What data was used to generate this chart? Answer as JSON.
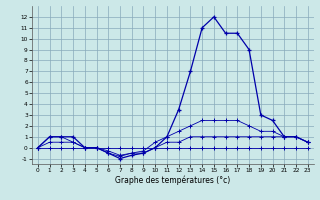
{
  "xlabel": "Graphe des températures (°c)",
  "hours": [
    0,
    1,
    2,
    3,
    4,
    5,
    6,
    7,
    8,
    9,
    10,
    11,
    12,
    13,
    14,
    15,
    16,
    17,
    18,
    19,
    20,
    21,
    22,
    23
  ],
  "temp_main": [
    0,
    1,
    1,
    1,
    0,
    0,
    -0.5,
    -1,
    -0.7,
    -0.5,
    0,
    1,
    3.5,
    7,
    11,
    12,
    10.5,
    10.5,
    9,
    3,
    2.5,
    1,
    1,
    0.5
  ],
  "temp_line2": [
    0,
    0,
    0,
    0,
    0,
    0,
    0,
    0,
    0,
    0,
    0,
    0,
    0,
    0,
    0,
    0,
    0,
    0,
    0,
    0,
    0,
    0,
    0,
    0
  ],
  "temp_line3": [
    0,
    0.5,
    0.5,
    0.5,
    0,
    0,
    -0.5,
    -0.8,
    -0.5,
    -0.5,
    0,
    0.5,
    0.5,
    1,
    1,
    1,
    1,
    1,
    1,
    1,
    1,
    1,
    1,
    0.5
  ],
  "temp_line4": [
    0,
    1,
    1,
    0.5,
    0,
    0,
    -0.3,
    -0.7,
    -0.5,
    -0.3,
    0.5,
    1,
    1.5,
    2,
    2.5,
    2.5,
    2.5,
    2.5,
    2,
    1.5,
    1.5,
    1,
    1,
    0.5
  ],
  "background": "#cce8e8",
  "grid_color": "#88aabb",
  "line_color": "#0000aa",
  "ylim": [
    -1.5,
    13
  ],
  "yticks": [
    -1,
    0,
    1,
    2,
    3,
    4,
    5,
    6,
    7,
    8,
    9,
    10,
    11,
    12
  ],
  "xticks": [
    0,
    1,
    2,
    3,
    4,
    5,
    6,
    7,
    8,
    9,
    10,
    11,
    12,
    13,
    14,
    15,
    16,
    17,
    18,
    19,
    20,
    21,
    22,
    23
  ]
}
